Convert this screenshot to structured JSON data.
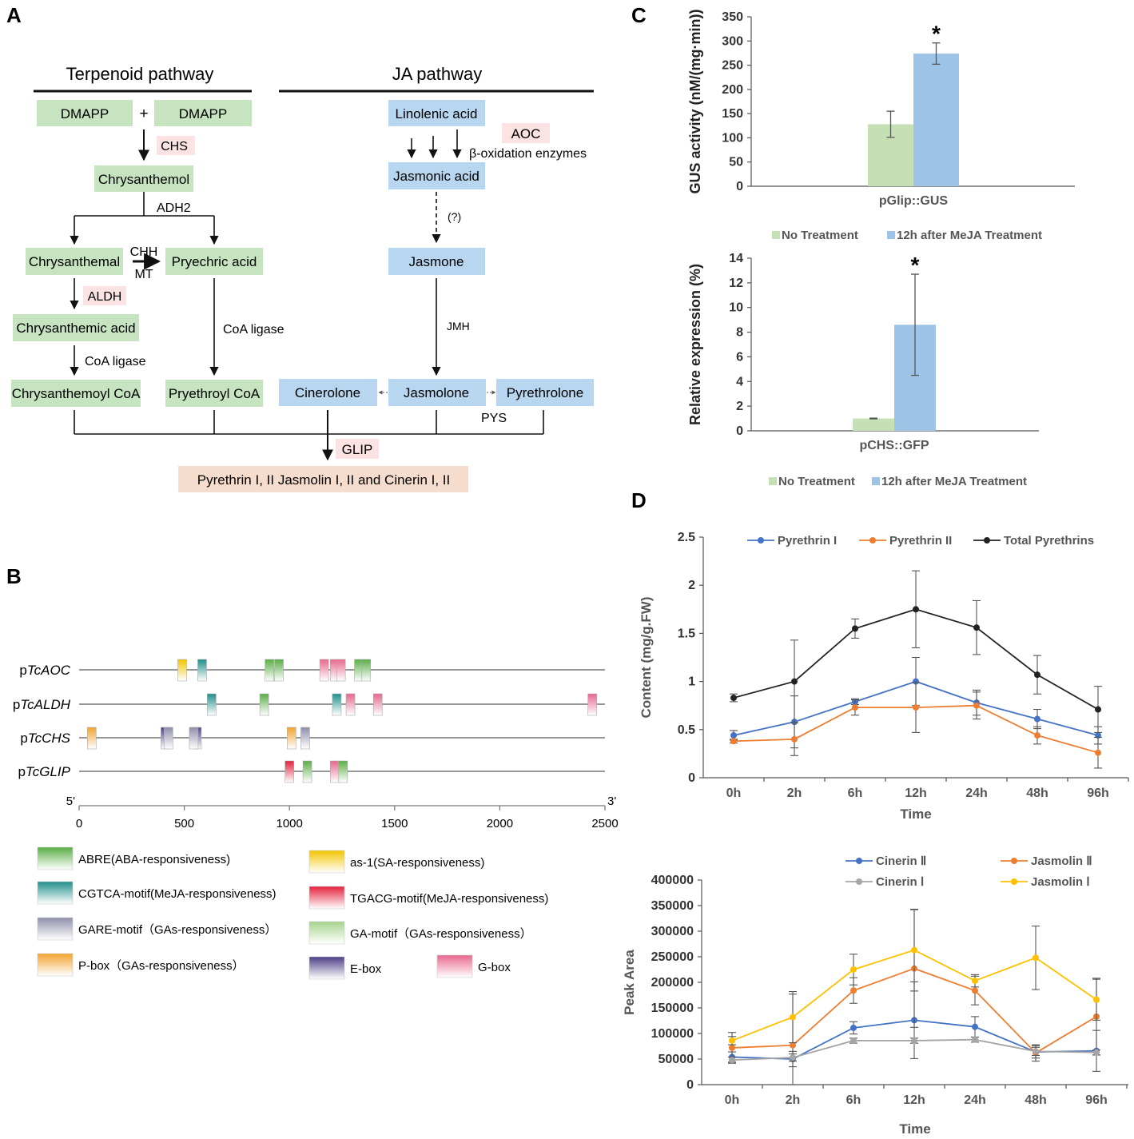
{
  "panel_labels": {
    "a": "A",
    "b": "B",
    "c": "C",
    "d": "D"
  },
  "pathway": {
    "terpenoid_header": "Terpenoid pathway",
    "ja_header": "JA pathway",
    "nodes": {
      "dmapp1": "DMAPP",
      "plus": "+",
      "dmapp2": "DMAPP",
      "chrysanthemol": "Chrysanthemol",
      "chrysanthemal": "Chrysanthemal",
      "pryechric_acid": "Pryechric acid",
      "chrysanthemic_acid": "Chrysanthemic acid",
      "chrysanthemoyl_coa": "Chrysanthemoyl CoA",
      "pryethroyl_coa": "Pryethroyl CoA",
      "linolenic_acid": "Linolenic acid",
      "jasmonic_acid": "Jasmonic acid",
      "jasmone": "Jasmone",
      "cinerolone": "Cinerolone",
      "jasmolone": "Jasmolone",
      "pyrethrolone": "Pyrethrolone",
      "product": "Pyrethrin I, II Jasmolin I, II and Cinerin I, II"
    },
    "enzymes": {
      "chs": "CHS",
      "adh2": "ADH2",
      "chh": "CHH",
      "mt": "MT",
      "aldh": "ALDH",
      "coa_ligase_1": "CoA ligase",
      "coa_ligase_2": "CoA ligase",
      "aoc": "AOC",
      "beta_ox": "β-oxidation enzymes",
      "unknown": "(?)",
      "jmh": "JMH",
      "pys": "PYS",
      "glip": "GLIP"
    }
  },
  "promoters": {
    "names": [
      {
        "prefix": "p",
        "gene": "TcAOC"
      },
      {
        "prefix": "p",
        "gene": "TcALDH"
      },
      {
        "prefix": "p",
        "gene": "TcCHS"
      },
      {
        "prefix": "p",
        "gene": "TcGLIP"
      }
    ],
    "axis": {
      "start_label": "5'",
      "end_label": "3'",
      "ticks": [
        "0",
        "500",
        "1000",
        "1500",
        "2000",
        "2500"
      ]
    },
    "elements": [
      {
        "promoter": 0,
        "pos": 490,
        "type": "as1"
      },
      {
        "promoter": 0,
        "pos": 585,
        "type": "cgtca"
      },
      {
        "promoter": 0,
        "pos": 905,
        "type": "abre"
      },
      {
        "promoter": 0,
        "pos": 950,
        "type": "abre"
      },
      {
        "promoter": 0,
        "pos": 1165,
        "type": "gbox"
      },
      {
        "promoter": 0,
        "pos": 1215,
        "type": "gbox"
      },
      {
        "promoter": 0,
        "pos": 1245,
        "type": "gbox"
      },
      {
        "promoter": 0,
        "pos": 1330,
        "type": "abre"
      },
      {
        "promoter": 0,
        "pos": 1365,
        "type": "abre"
      },
      {
        "promoter": 1,
        "pos": 630,
        "type": "cgtca"
      },
      {
        "promoter": 1,
        "pos": 880,
        "type": "abre"
      },
      {
        "promoter": 1,
        "pos": 1225,
        "type": "cgtca"
      },
      {
        "promoter": 1,
        "pos": 1290,
        "type": "gbox"
      },
      {
        "promoter": 1,
        "pos": 1420,
        "type": "gbox"
      },
      {
        "promoter": 1,
        "pos": 2440,
        "type": "gbox"
      },
      {
        "promoter": 2,
        "pos": 60,
        "type": "pbox"
      },
      {
        "promoter": 2,
        "pos": 410,
        "type": "ebox"
      },
      {
        "promoter": 2,
        "pos": 425,
        "type": "gare"
      },
      {
        "promoter": 2,
        "pos": 560,
        "type": "ebox"
      },
      {
        "promoter": 2,
        "pos": 545,
        "type": "gare"
      },
      {
        "promoter": 2,
        "pos": 1010,
        "type": "pbox"
      },
      {
        "promoter": 2,
        "pos": 1075,
        "type": "gare"
      },
      {
        "promoter": 3,
        "pos": 1000,
        "type": "tgacg"
      },
      {
        "promoter": 3,
        "pos": 1085,
        "type": "abre"
      },
      {
        "promoter": 3,
        "pos": 1215,
        "type": "gbox"
      },
      {
        "promoter": 3,
        "pos": 1255,
        "type": "abre"
      }
    ],
    "legend": [
      {
        "type": "abre",
        "label": "ABRE(ABA-responsiveness)"
      },
      {
        "type": "as1",
        "label": "as-1(SA-responsiveness)"
      },
      {
        "type": "cgtca",
        "label": "CGTCA-motif(MeJA-responsiveness)"
      },
      {
        "type": "tgacg",
        "label": "TGACG-motif(MeJA-responsiveness)"
      },
      {
        "type": "gare",
        "label": "GARE-motif（GAs-responsiveness）"
      },
      {
        "type": "gamotif",
        "label": "GA-motif（GAs-responsiveness）"
      },
      {
        "type": "pbox",
        "label": "P-box（GAs-responsiveness）"
      },
      {
        "type": "ebox",
        "label": "E-box"
      },
      {
        "type": "gbox",
        "label": "G-box"
      }
    ],
    "colors": {
      "abre": "#5aae45",
      "as1": "#f2c500",
      "cgtca": "#1f8f8a",
      "tgacg": "#e3203c",
      "gare": "#8e8eaa",
      "gamotif": "#a6d38c",
      "pbox": "#f2a330",
      "ebox": "#4d3f86",
      "gbox": "#e8678e"
    }
  },
  "chart_data": [
    {
      "type": "bar",
      "id": "gus",
      "categories": [
        "pGlip::GUS"
      ],
      "series": [
        {
          "name": "No Treatment",
          "values": [
            128
          ],
          "errors": [
            27
          ]
        },
        {
          "name": "12h after MeJA Treatment",
          "values": [
            274
          ],
          "errors": [
            22
          ],
          "significance": "*"
        }
      ],
      "ylabel": "GUS activity (nM/(mg·min))",
      "ylim": [
        0,
        350
      ],
      "yticks": [
        "0",
        "50",
        "100",
        "150",
        "200",
        "250",
        "300",
        "350"
      ],
      "colors": [
        "#c5e0b4",
        "#9dc3e6"
      ]
    },
    {
      "type": "bar",
      "id": "gfp",
      "categories": [
        "pCHS::GFP"
      ],
      "series": [
        {
          "name": "No Treatment",
          "values": [
            1
          ],
          "errors": [
            0.03
          ]
        },
        {
          "name": "12h after MeJA Treatment",
          "values": [
            8.6
          ],
          "errors": [
            4.1
          ],
          "significance": "*"
        }
      ],
      "ylabel": "Relative expression (%)",
      "ylim": [
        0,
        14
      ],
      "yticks": [
        "0",
        "2",
        "4",
        "6",
        "8",
        "10",
        "12",
        "14"
      ],
      "colors": [
        "#c5e0b4",
        "#9dc3e6"
      ]
    },
    {
      "type": "line",
      "id": "content",
      "categories": [
        "0h",
        "2h",
        "6h",
        "12h",
        "24h",
        "48h",
        "96h"
      ],
      "series": [
        {
          "name": "Pyrethrin I",
          "values": [
            0.44,
            0.58,
            0.79,
            1.0,
            0.78,
            0.61,
            0.44
          ],
          "errors": [
            0.05,
            0.27,
            0.03,
            0.25,
            0.13,
            0.1,
            0.09
          ],
          "color": "#4472c4"
        },
        {
          "name": "Pyrethrin II",
          "values": [
            0.38,
            0.4,
            0.73,
            0.73,
            0.75,
            0.44,
            0.26
          ],
          "errors": [
            0.02,
            0.17,
            0.08,
            0.26,
            0.14,
            0.09,
            0.16
          ],
          "color": "#ed7d31"
        },
        {
          "name": "Total Pyrethrins",
          "values": [
            0.83,
            1.0,
            1.55,
            1.75,
            1.56,
            1.07,
            0.71
          ],
          "errors": [
            0.04,
            0.43,
            0.1,
            0.4,
            0.28,
            0.2,
            0.24
          ],
          "color": "#222222"
        }
      ],
      "xlabel": "Time",
      "ylabel": "Content (mg/g.FW)",
      "ylim": [
        0,
        2.5
      ],
      "yticks": [
        "0",
        "0.5",
        "1",
        "1.5",
        "2",
        "2.5"
      ]
    },
    {
      "type": "line",
      "id": "peak",
      "categories": [
        "0h",
        "2h",
        "6h",
        "12h",
        "24h",
        "48h",
        "96h"
      ],
      "series": [
        {
          "name": "Cinerin Ⅱ",
          "values": [
            54000,
            50000,
            111000,
            126000,
            113000,
            64000,
            66000
          ],
          "errors": [
            10000,
            15000,
            12000,
            75000,
            20000,
            12000,
            40000
          ],
          "color": "#4472c4"
        },
        {
          "name": "Jasmolin Ⅱ",
          "values": [
            72000,
            77000,
            184000,
            227000,
            184000,
            62000,
            133000
          ],
          "errors": [
            30000,
            100000,
            25000,
            115000,
            28000,
            16000,
            75000
          ],
          "color": "#ed7d31"
        },
        {
          "name": "Cinerin Ⅰ",
          "values": [
            48000,
            53000,
            86000,
            86000,
            88000,
            65000,
            63000
          ],
          "errors": [
            6000,
            7000,
            5000,
            5000,
            5000,
            8000,
            5000
          ],
          "color": "#a5a5a5"
        },
        {
          "name": "Jasmolin Ⅰ",
          "values": [
            86000,
            132000,
            225000,
            263000,
            203000,
            248000,
            166000
          ],
          "errors": [
            8000,
            50000,
            30000,
            80000,
            12000,
            62000,
            40000
          ],
          "color": "#ffc000"
        }
      ],
      "xlabel": "Time",
      "ylabel": "Peak Area",
      "ylim": [
        0,
        400000
      ],
      "yticks": [
        "0",
        "50000",
        "100000",
        "150000",
        "200000",
        "250000",
        "300000",
        "350000",
        "400000"
      ]
    }
  ]
}
